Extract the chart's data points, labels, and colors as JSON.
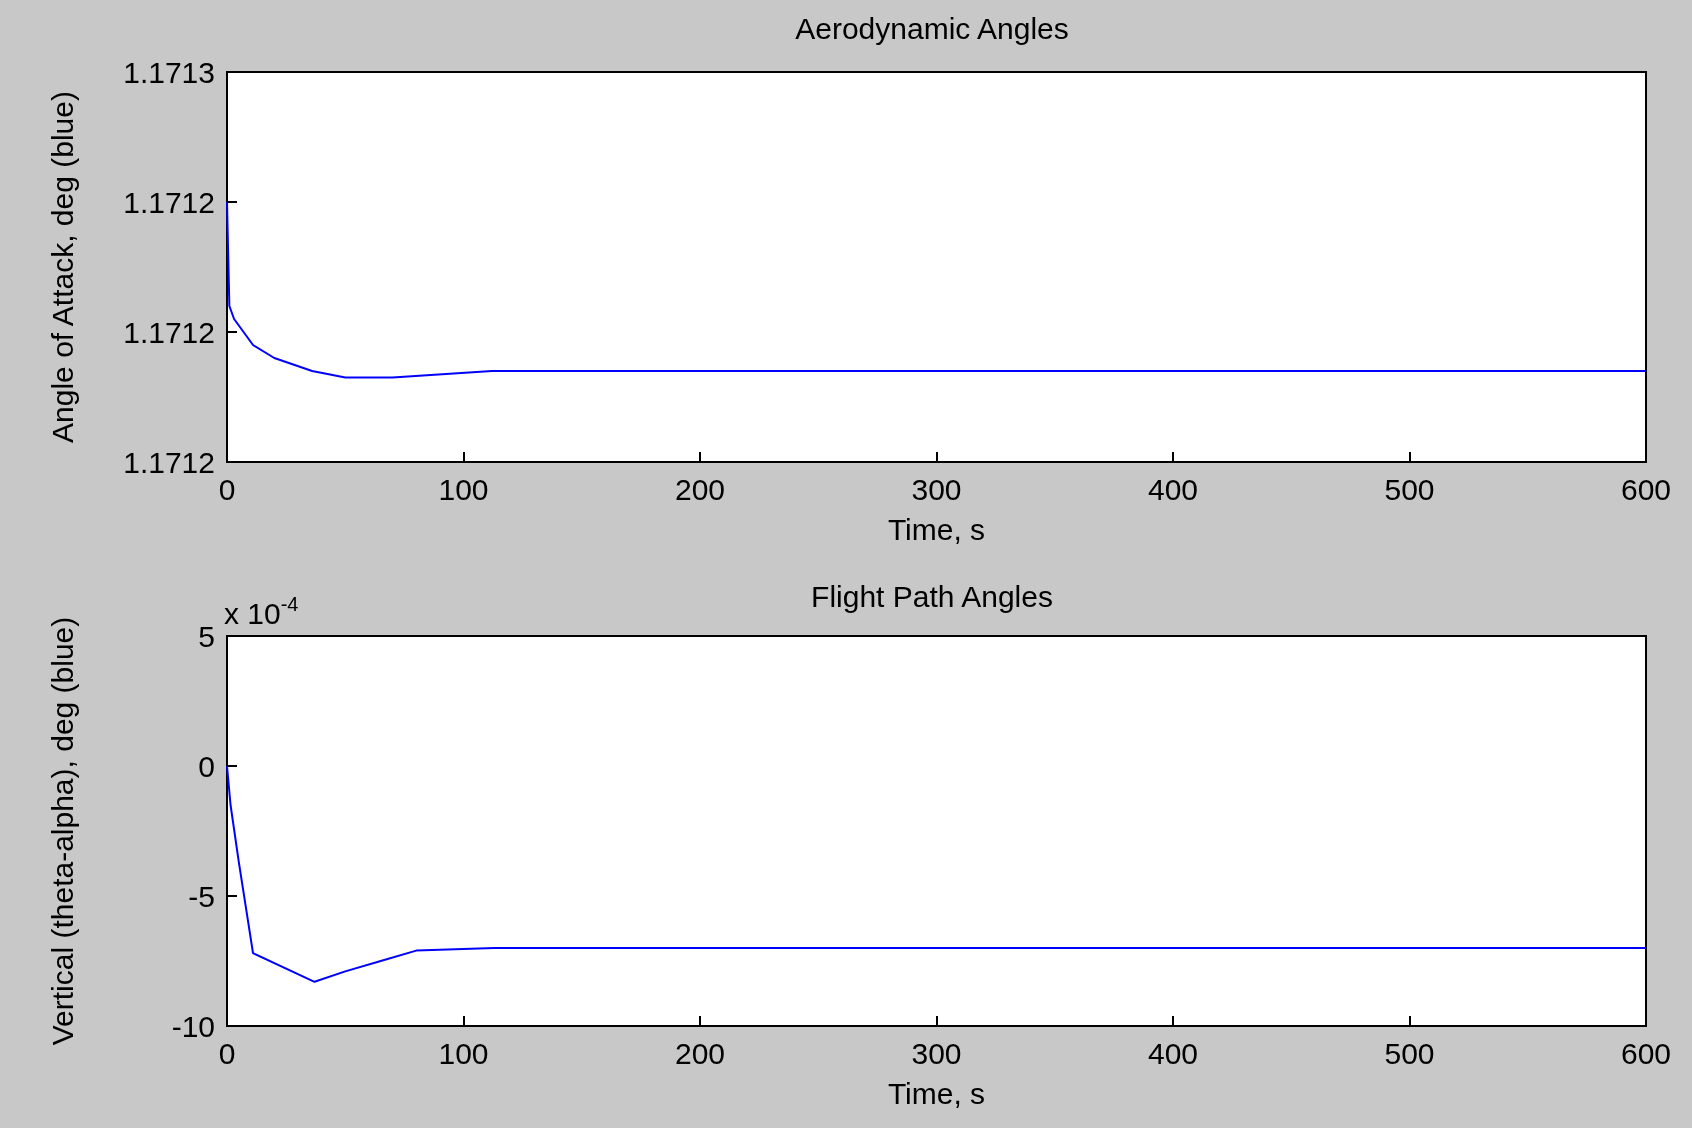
{
  "chart_data": [
    {
      "type": "line",
      "title": "Aerodynamic Angles",
      "xlabel": "Time, s",
      "ylabel": "Angle of Attack, deg (blue)",
      "x": [
        0,
        1,
        3,
        11,
        20,
        36,
        50,
        70,
        112,
        113,
        600
      ],
      "series": [
        {
          "color": "#0000ff",
          "values": [
            1.17124,
            1.171224,
            1.171222,
            1.171218,
            1.171216,
            1.171214,
            1.171213,
            1.171213,
            1.171214,
            1.171214,
            1.171214
          ]
        }
      ],
      "xlim": [
        0,
        600
      ],
      "xticks": [
        0,
        100,
        200,
        300,
        400,
        500,
        600
      ],
      "ylim": [
        1.1712,
        1.17126
      ],
      "yticks": [
        {
          "value": 1.1712,
          "label": "1.1712"
        },
        {
          "value": 1.17122,
          "label": "1.1712"
        },
        {
          "value": 1.17124,
          "label": "1.1712"
        },
        {
          "value": 1.17126,
          "label": "1.1713"
        }
      ],
      "grid": false,
      "marker": "none",
      "line_style": "solid"
    },
    {
      "type": "line",
      "title": "Flight Path Angles",
      "xlabel": "Time, s",
      "ylabel": "Vertical (theta-alpha), deg (blue)",
      "annotations": [
        "x 10$^{-4}$"
      ],
      "x": [
        0,
        1.5,
        5,
        11,
        37,
        50,
        65,
        80,
        113,
        600
      ],
      "series": [
        {
          "color": "#0000ff",
          "values": [
            0,
            -1.5,
            -3.7,
            -7.2,
            -8.3,
            -7.9,
            -7.5,
            -7.1,
            -7.0,
            -7.0
          ]
        }
      ],
      "xlim": [
        0,
        600
      ],
      "xticks": [
        0,
        100,
        200,
        300,
        400,
        500,
        600
      ],
      "ylim": [
        -10,
        5
      ],
      "yticks": [
        -10,
        -5,
        0,
        5
      ],
      "grid": false,
      "marker": "none",
      "line_style": "solid"
    }
  ]
}
